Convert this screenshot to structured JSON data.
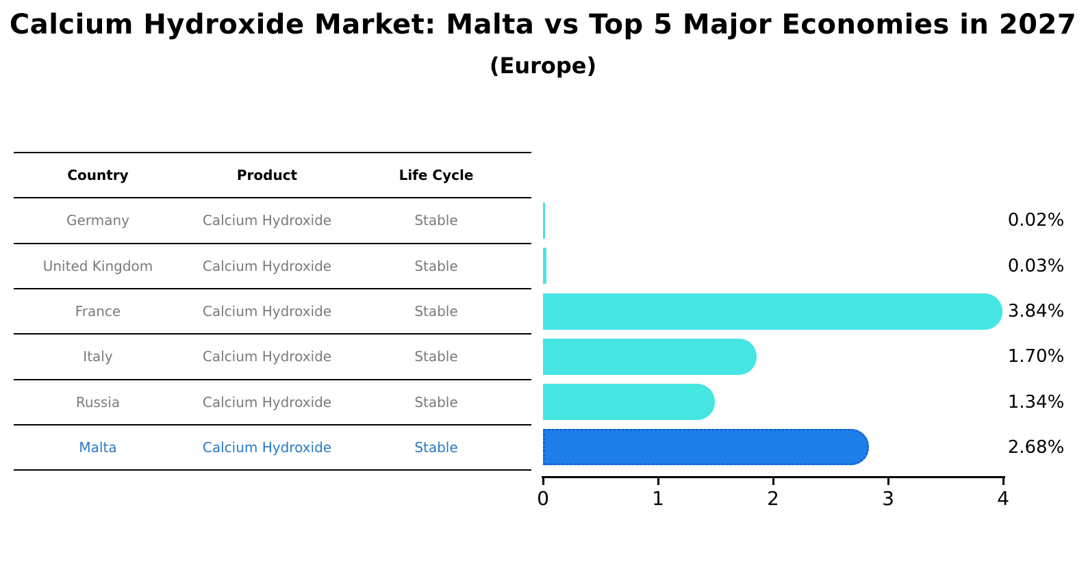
{
  "title": "Calcium Hydroxide Market: Malta vs Top 5 Major Economies in 2027",
  "subtitle": "(Europe)",
  "table": {
    "headers": [
      "Country",
      "Product",
      "Life Cycle"
    ],
    "rows": [
      {
        "country": "Germany",
        "product": "Calcium Hydroxide",
        "life_cycle": "Stable",
        "highlight": false
      },
      {
        "country": "United Kingdom",
        "product": "Calcium Hydroxide",
        "life_cycle": "Stable",
        "highlight": false
      },
      {
        "country": "France",
        "product": "Calcium Hydroxide",
        "life_cycle": "Stable",
        "highlight": false
      },
      {
        "country": "Italy",
        "product": "Calcium Hydroxide",
        "life_cycle": "Stable",
        "highlight": false
      },
      {
        "country": "Russia",
        "product": "Calcium Hydroxide",
        "life_cycle": "Stable",
        "highlight": false
      },
      {
        "country": "Malta",
        "product": "Calcium Hydroxide",
        "life_cycle": "Stable",
        "highlight": true
      }
    ]
  },
  "chart_data": {
    "type": "bar",
    "orientation": "horizontal",
    "title": "Calcium Hydroxide Market: Malta vs Top 5 Major Economies in 2027 (Europe)",
    "categories": [
      "Germany",
      "United Kingdom",
      "France",
      "Italy",
      "Russia",
      "Malta"
    ],
    "values": [
      0.02,
      0.03,
      3.84,
      1.7,
      1.34,
      2.68
    ],
    "value_labels": [
      "0.02%",
      "0.03%",
      "3.84%",
      "1.70%",
      "1.34%",
      "2.68%"
    ],
    "xlim": [
      0,
      4
    ],
    "x_ticks": [
      "0",
      "1",
      "2",
      "3",
      "4"
    ],
    "xlabel": "",
    "ylabel": "",
    "grid": false,
    "legend": "none",
    "bar_color": "#45e5e2",
    "highlight_bar_color": "#1e7feb",
    "highlight_bar_border": "#1261cf",
    "highlight_index": 5
  },
  "colors": {
    "background": "#ffffff",
    "table_line": "#000000",
    "header_text": "#000000",
    "row_text": "#7a7a7a",
    "highlight_text": "#2878c8",
    "axis": "#000000"
  }
}
